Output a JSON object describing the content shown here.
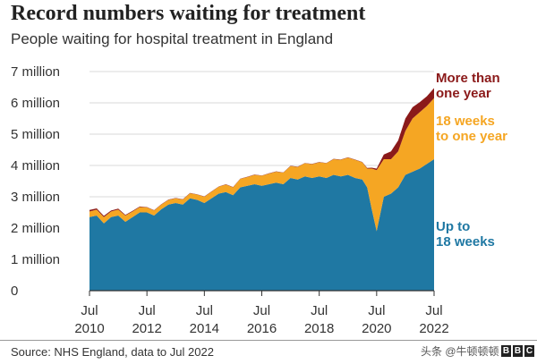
{
  "title": "Record numbers waiting for treatment",
  "subtitle": "People waiting for hospital treatment in England",
  "source": "Source: NHS England, data to Jul 2022",
  "watermark": "头条 @牛顿顿顿",
  "logo": [
    "B",
    "B",
    "C"
  ],
  "chart_data": {
    "type": "area",
    "stacked": true,
    "y_ticks": [
      "0",
      "1 million",
      "2 million",
      "3 million",
      "4 million",
      "5 million",
      "6 million",
      "7 million"
    ],
    "x_ticks": [
      {
        "month": "Jul",
        "year": "2010",
        "t": 2010.5
      },
      {
        "month": "Jul",
        "year": "2012",
        "t": 2012.5
      },
      {
        "month": "Jul",
        "year": "2014",
        "t": 2014.5
      },
      {
        "month": "Jul",
        "year": "2016",
        "t": 2016.5
      },
      {
        "month": "Jul",
        "year": "2018",
        "t": 2018.5
      },
      {
        "month": "Jul",
        "year": "2020",
        "t": 2020.5
      },
      {
        "month": "Jul",
        "year": "2022",
        "t": 2022.5
      }
    ],
    "ylim": [
      0,
      7000000
    ],
    "xlim": [
      2010.5,
      2022.5
    ],
    "x": [
      2010.5,
      2010.75,
      2011.0,
      2011.25,
      2011.5,
      2011.75,
      2012.0,
      2012.25,
      2012.5,
      2012.75,
      2013.0,
      2013.25,
      2013.5,
      2013.75,
      2014.0,
      2014.25,
      2014.5,
      2014.75,
      2015.0,
      2015.25,
      2015.5,
      2015.75,
      2016.0,
      2016.25,
      2016.5,
      2016.75,
      2017.0,
      2017.25,
      2017.5,
      2017.75,
      2018.0,
      2018.25,
      2018.5,
      2018.75,
      2019.0,
      2019.25,
      2019.5,
      2019.75,
      2020.0,
      2020.17,
      2020.33,
      2020.5,
      2020.75,
      2021.0,
      2021.25,
      2021.5,
      2021.75,
      2022.0,
      2022.25,
      2022.5
    ],
    "series": [
      {
        "name": "Up to 18 weeks",
        "color": "#1f78a3",
        "values": [
          2.35,
          2.4,
          2.15,
          2.35,
          2.4,
          2.2,
          2.35,
          2.5,
          2.5,
          2.4,
          2.6,
          2.75,
          2.8,
          2.75,
          2.95,
          2.9,
          2.8,
          2.95,
          3.1,
          3.15,
          3.05,
          3.3,
          3.35,
          3.4,
          3.35,
          3.4,
          3.45,
          3.4,
          3.6,
          3.55,
          3.65,
          3.6,
          3.65,
          3.6,
          3.7,
          3.65,
          3.7,
          3.6,
          3.55,
          3.3,
          2.6,
          1.9,
          3.0,
          3.1,
          3.3,
          3.7,
          3.8,
          3.9,
          4.05,
          4.2
        ]
      },
      {
        "name": "18 weeks to one year",
        "color": "#f5a623",
        "values": [
          0.18,
          0.19,
          0.2,
          0.18,
          0.19,
          0.2,
          0.18,
          0.17,
          0.16,
          0.16,
          0.15,
          0.15,
          0.15,
          0.16,
          0.16,
          0.17,
          0.2,
          0.21,
          0.22,
          0.24,
          0.25,
          0.27,
          0.28,
          0.3,
          0.32,
          0.34,
          0.35,
          0.37,
          0.38,
          0.4,
          0.42,
          0.44,
          0.45,
          0.47,
          0.5,
          0.53,
          0.55,
          0.58,
          0.55,
          0.6,
          1.3,
          1.95,
          1.2,
          1.1,
          1.15,
          1.4,
          1.7,
          1.8,
          1.85,
          1.95
        ]
      },
      {
        "name": "More than one year",
        "color": "#8b1a1a",
        "values": [
          0.05,
          0.04,
          0.04,
          0.03,
          0.03,
          0.02,
          0.02,
          0.02,
          0.01,
          0.01,
          0.01,
          0.01,
          0.01,
          0.01,
          0.01,
          0.01,
          0.01,
          0.01,
          0.01,
          0.01,
          0.01,
          0.01,
          0.01,
          0.01,
          0.01,
          0.01,
          0.01,
          0.01,
          0.01,
          0.01,
          0.01,
          0.01,
          0.01,
          0.01,
          0.01,
          0.01,
          0.01,
          0.01,
          0.01,
          0.02,
          0.03,
          0.05,
          0.15,
          0.25,
          0.35,
          0.4,
          0.36,
          0.32,
          0.31,
          0.32
        ]
      }
    ],
    "series_units": "millions",
    "series_labels": [
      {
        "series": 0,
        "lines": [
          "Up to",
          "18 weeks"
        ]
      },
      {
        "series": 1,
        "lines": [
          "18 weeks",
          "to one year"
        ]
      },
      {
        "series": 2,
        "lines": [
          "More than",
          "one year"
        ]
      }
    ]
  }
}
